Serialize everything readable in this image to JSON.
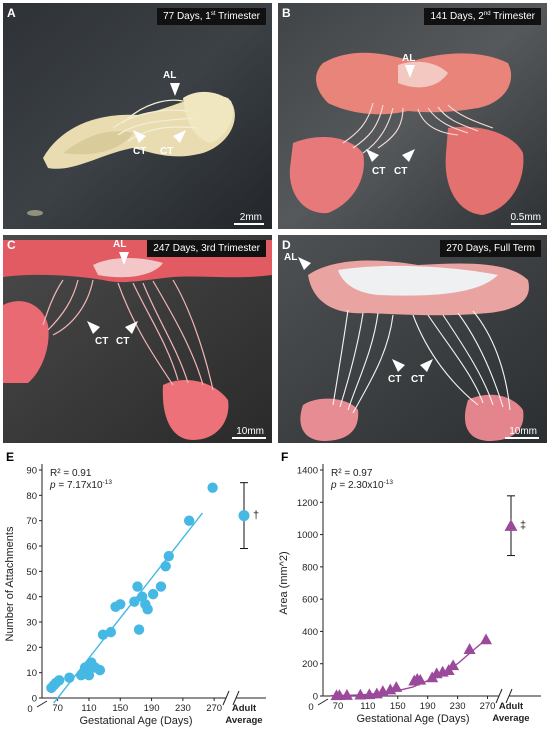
{
  "photo_panels": [
    {
      "letter": "A",
      "caption": {
        "main": "77 Days, 1",
        "sup": "st",
        "tail": " Trimester"
      },
      "scale_label": "2mm",
      "labels": {
        "al": "AL",
        "ct1": "CT",
        "ct2": "CT"
      }
    },
    {
      "letter": "B",
      "caption": {
        "main": "141 Days, 2",
        "sup": "nd",
        "tail": " Trimester"
      },
      "scale_label": "0.5mm",
      "labels": {
        "al": "AL",
        "ct1": "CT",
        "ct2": "CT"
      }
    },
    {
      "letter": "C",
      "caption": {
        "main": "247 Days, 3rd Trimester",
        "sup": "",
        "tail": ""
      },
      "scale_label": "10mm",
      "labels": {
        "al": "AL",
        "ct1": "CT",
        "ct2": "CT"
      }
    },
    {
      "letter": "D",
      "caption": {
        "main": "270 Days, Full Term",
        "sup": "",
        "tail": ""
      },
      "scale_label": "10mm",
      "labels": {
        "al": "AL",
        "ct1": "CT",
        "ct2": "CT"
      }
    }
  ],
  "chart_data": [
    {
      "letter": "E",
      "type": "scatter",
      "xlabel": "Gestational Age (Days)",
      "ylabel": "Number of Attachments",
      "xticks": [
        70,
        110,
        150,
        190,
        230,
        270
      ],
      "yticks": [
        0,
        10,
        20,
        30,
        40,
        50,
        60,
        70,
        80,
        90
      ],
      "xlim": [
        50,
        280
      ],
      "ylim": [
        0,
        90
      ],
      "axis_zero_label": "0",
      "adult_label": [
        "Adult",
        "Average"
      ],
      "stats": {
        "r2": "R² = 0.91",
        "p_prefix": "p",
        "p_value": " = 7.17x10",
        "p_exp": "-13"
      },
      "marker_color": "#45b8e4",
      "fit": {
        "x": [
          65,
          255
        ],
        "y": [
          -2,
          73
        ]
      },
      "points": [
        {
          "x": 62,
          "y": 4
        },
        {
          "x": 65,
          "y": 5
        },
        {
          "x": 68,
          "y": 6
        },
        {
          "x": 72,
          "y": 7
        },
        {
          "x": 85,
          "y": 8
        },
        {
          "x": 100,
          "y": 9
        },
        {
          "x": 105,
          "y": 12
        },
        {
          "x": 108,
          "y": 10
        },
        {
          "x": 110,
          "y": 9
        },
        {
          "x": 113,
          "y": 14
        },
        {
          "x": 118,
          "y": 12
        },
        {
          "x": 124,
          "y": 11
        },
        {
          "x": 128,
          "y": 25
        },
        {
          "x": 138,
          "y": 26
        },
        {
          "x": 144,
          "y": 36
        },
        {
          "x": 150,
          "y": 37
        },
        {
          "x": 168,
          "y": 38
        },
        {
          "x": 172,
          "y": 44
        },
        {
          "x": 174,
          "y": 27
        },
        {
          "x": 178,
          "y": 40
        },
        {
          "x": 182,
          "y": 37
        },
        {
          "x": 185,
          "y": 35
        },
        {
          "x": 192,
          "y": 41
        },
        {
          "x": 202,
          "y": 44
        },
        {
          "x": 208,
          "y": 52
        },
        {
          "x": 212,
          "y": 56
        },
        {
          "x": 238,
          "y": 70
        },
        {
          "x": 268,
          "y": 83
        }
      ],
      "adult": {
        "value": 72,
        "low": 59,
        "high": 85,
        "symbol": "†"
      }
    },
    {
      "letter": "F",
      "type": "scatter",
      "xlabel": "Gestational Age (Days)",
      "ylabel": "Area (mm^2)",
      "xticks": [
        70,
        110,
        150,
        190,
        230,
        270
      ],
      "yticks": [
        0,
        200,
        400,
        600,
        800,
        1000,
        1200,
        1400
      ],
      "xlim": [
        50,
        280
      ],
      "ylim": [
        0,
        1400
      ],
      "axis_zero_label": "0",
      "adult_label": [
        "Adult",
        "Average"
      ],
      "stats": {
        "r2": "R² = 0.97",
        "p_prefix": "p",
        "p_value": " = 2.30x10",
        "p_exp": "-13"
      },
      "marker_color": "#9b4a9b",
      "fit_curve": [
        [
          60,
          2
        ],
        [
          100,
          6
        ],
        [
          140,
          22
        ],
        [
          170,
          55
        ],
        [
          200,
          115
        ],
        [
          230,
          200
        ],
        [
          255,
          300
        ],
        [
          268,
          350
        ]
      ],
      "points": [
        {
          "x": 68,
          "y": 4
        },
        {
          "x": 72,
          "y": 5
        },
        {
          "x": 82,
          "y": 6
        },
        {
          "x": 100,
          "y": 8
        },
        {
          "x": 112,
          "y": 10
        },
        {
          "x": 122,
          "y": 15
        },
        {
          "x": 130,
          "y": 30
        },
        {
          "x": 140,
          "y": 40
        },
        {
          "x": 148,
          "y": 55
        },
        {
          "x": 172,
          "y": 95
        },
        {
          "x": 176,
          "y": 105
        },
        {
          "x": 180,
          "y": 100
        },
        {
          "x": 196,
          "y": 115
        },
        {
          "x": 202,
          "y": 140
        },
        {
          "x": 210,
          "y": 150
        },
        {
          "x": 218,
          "y": 160
        },
        {
          "x": 224,
          "y": 190
        },
        {
          "x": 246,
          "y": 290
        },
        {
          "x": 268,
          "y": 350
        }
      ],
      "adult": {
        "value": 1055,
        "low": 870,
        "high": 1240,
        "symbol": "‡"
      }
    }
  ]
}
